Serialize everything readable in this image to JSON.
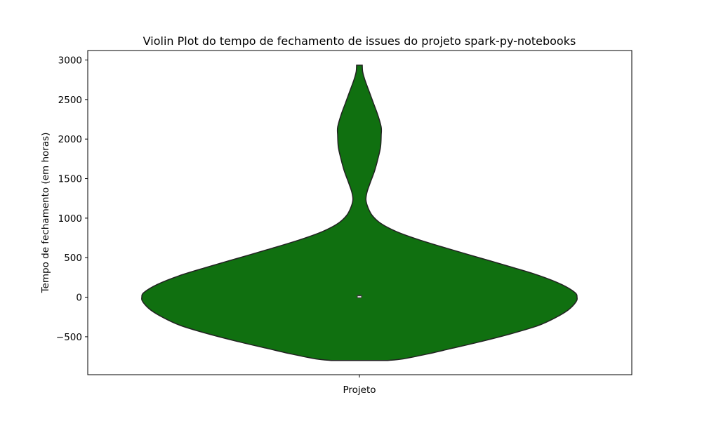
{
  "chart_data": {
    "type": "violin",
    "title": "Violin Plot do tempo de fechamento de issues do projeto spark-py-notebooks",
    "xlabel": "",
    "ylabel": "Tempo de fechamento (em horas)",
    "categories": [
      "Projeto"
    ],
    "ylim": [
      -980,
      3120
    ],
    "yticks": [
      -500,
      0,
      500,
      1000,
      1500,
      2000,
      2500,
      3000
    ],
    "ytick_labels": [
      "−500",
      "0",
      "500",
      "1000",
      "1500",
      "2000",
      "2500",
      "3000"
    ],
    "violin": {
      "range": [
        -800,
        2935
      ],
      "median": 5,
      "q1": -12,
      "q3": 30,
      "width_profile": [
        {
          "y": -800,
          "w": 0.13
        },
        {
          "y": -780,
          "w": 0.2
        },
        {
          "y": -720,
          "w": 0.31
        },
        {
          "y": -650,
          "w": 0.42
        },
        {
          "y": -560,
          "w": 0.56
        },
        {
          "y": -460,
          "w": 0.7
        },
        {
          "y": -360,
          "w": 0.82
        },
        {
          "y": -260,
          "w": 0.9
        },
        {
          "y": -160,
          "w": 0.96
        },
        {
          "y": -60,
          "w": 0.995
        },
        {
          "y": 0,
          "w": 1.0
        },
        {
          "y": 60,
          "w": 0.99
        },
        {
          "y": 160,
          "w": 0.93
        },
        {
          "y": 270,
          "w": 0.83
        },
        {
          "y": 380,
          "w": 0.7
        },
        {
          "y": 500,
          "w": 0.55
        },
        {
          "y": 620,
          "w": 0.4
        },
        {
          "y": 730,
          "w": 0.27
        },
        {
          "y": 830,
          "w": 0.17
        },
        {
          "y": 930,
          "w": 0.1
        },
        {
          "y": 1030,
          "w": 0.06
        },
        {
          "y": 1130,
          "w": 0.04
        },
        {
          "y": 1230,
          "w": 0.03
        },
        {
          "y": 1330,
          "w": 0.035
        },
        {
          "y": 1450,
          "w": 0.05
        },
        {
          "y": 1600,
          "w": 0.07
        },
        {
          "y": 1750,
          "w": 0.085
        },
        {
          "y": 1900,
          "w": 0.097
        },
        {
          "y": 2050,
          "w": 0.1
        },
        {
          "y": 2150,
          "w": 0.1
        },
        {
          "y": 2300,
          "w": 0.085
        },
        {
          "y": 2450,
          "w": 0.065
        },
        {
          "y": 2600,
          "w": 0.045
        },
        {
          "y": 2750,
          "w": 0.025
        },
        {
          "y": 2850,
          "w": 0.015
        },
        {
          "y": 2935,
          "w": 0.013
        }
      ]
    },
    "colors": {
      "fill": "#107010",
      "edge": "#222222",
      "box": "#3a3a3a",
      "median": "#ffffff"
    },
    "grid": false
  }
}
